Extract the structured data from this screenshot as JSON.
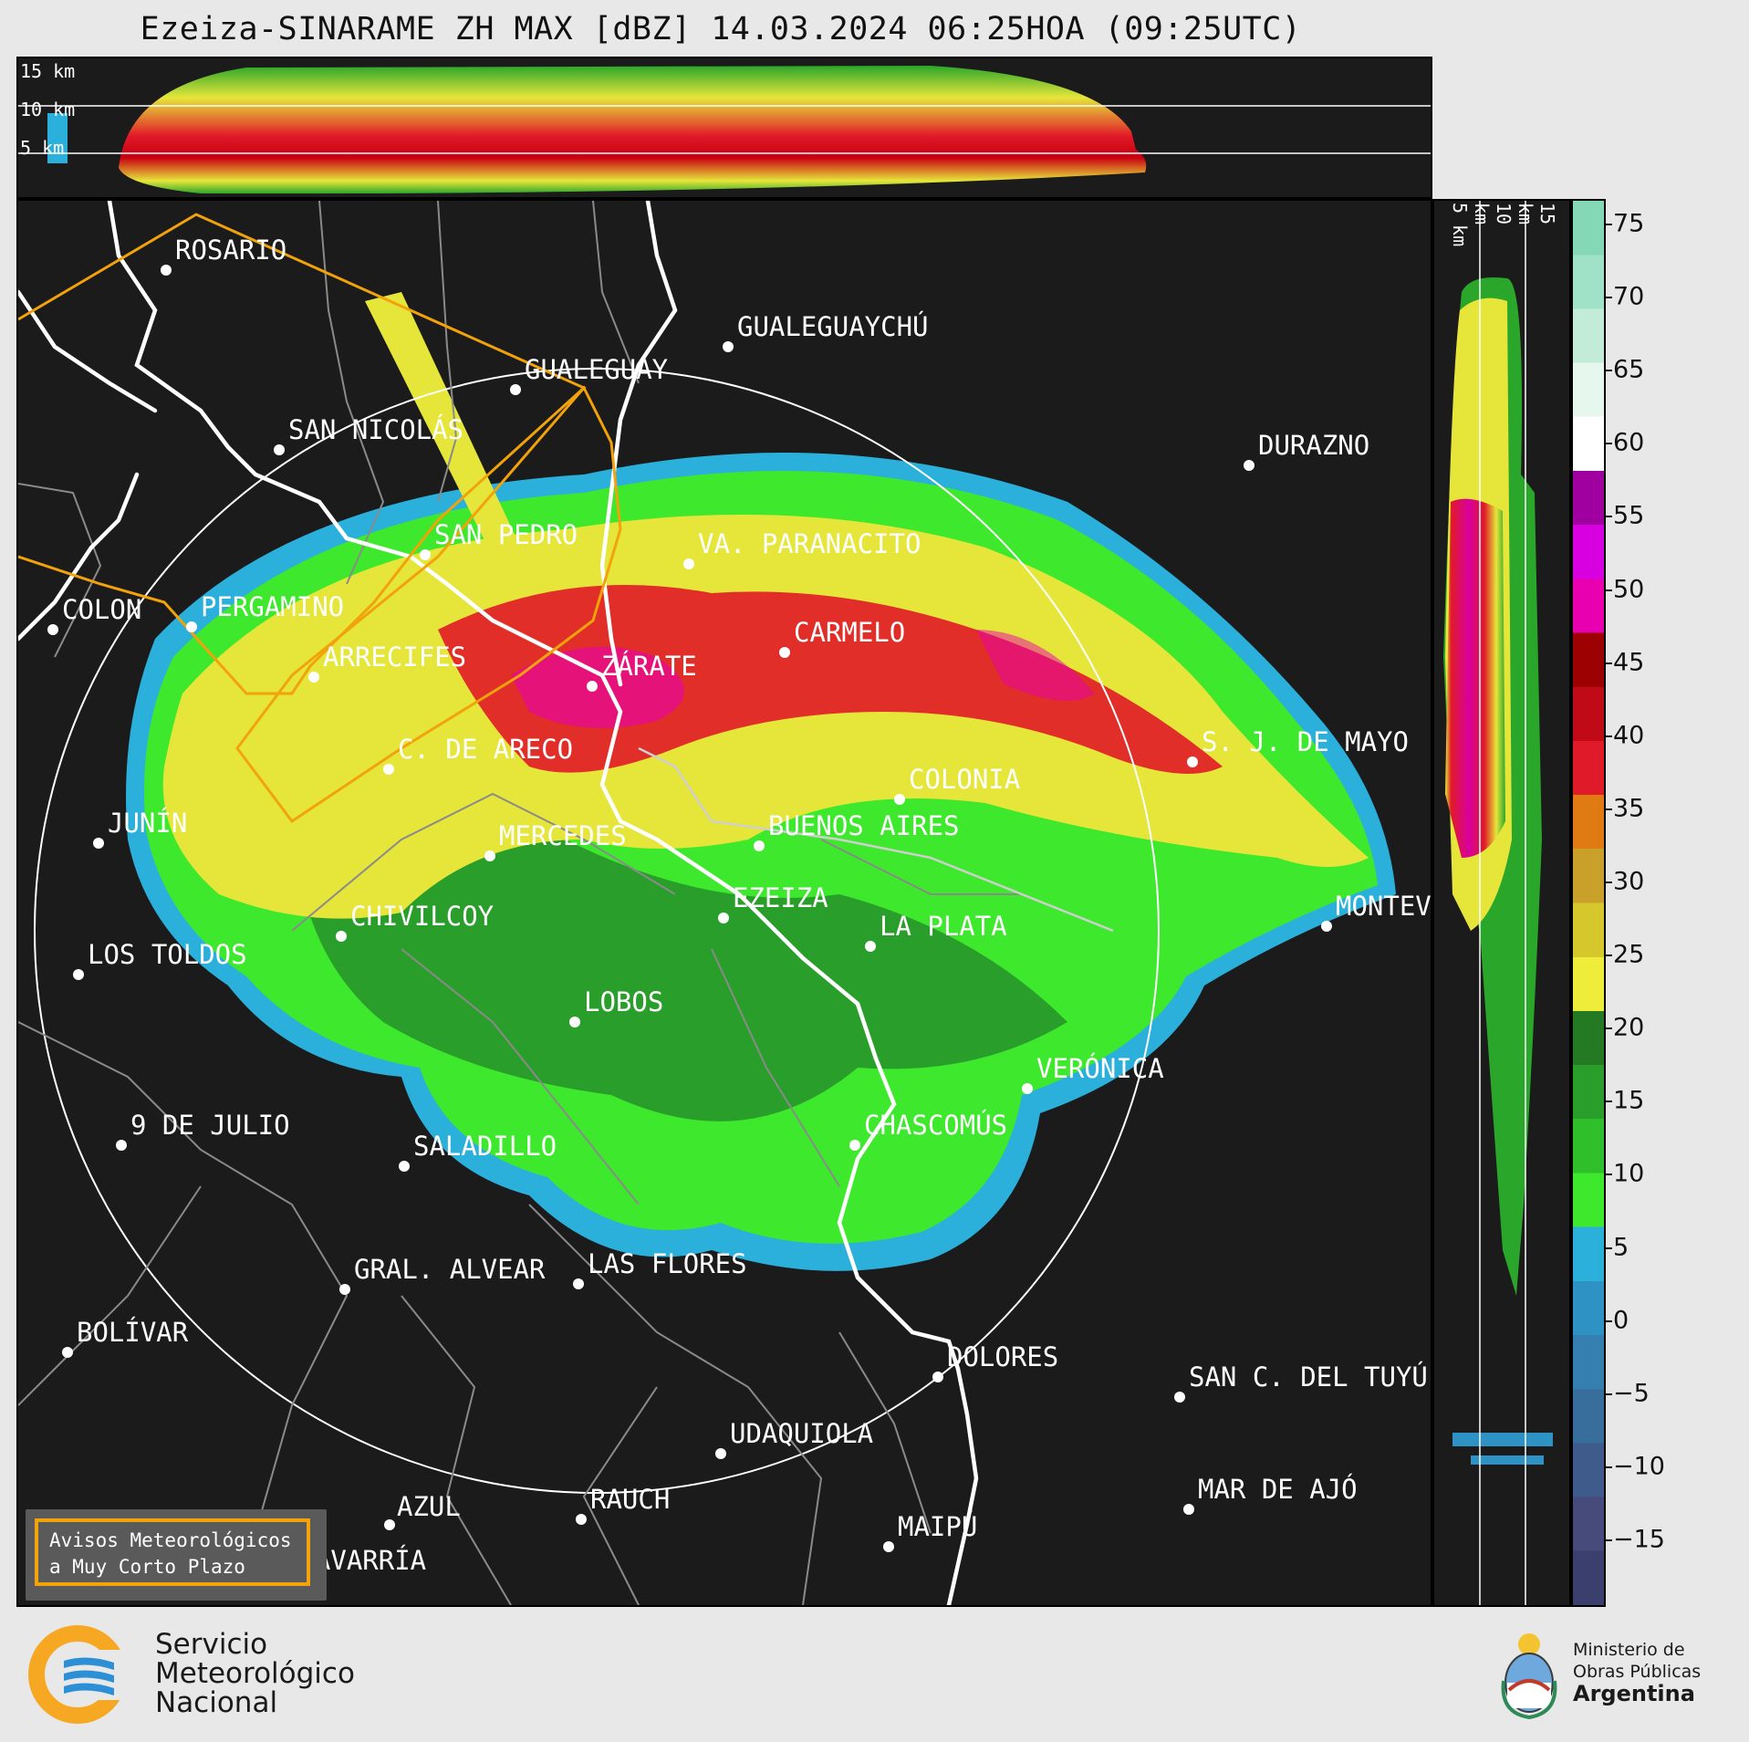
{
  "header": {
    "title": "Ezeiza-SINARAME ZH MAX [dBZ] 14.03.2024 06:25HOA (09:25UTC)"
  },
  "top_panel": {
    "height_labels": [
      "15 km",
      "10 km",
      "5 km"
    ]
  },
  "right_panel": {
    "height_labels": [
      "5 km",
      "10 km",
      "15 km"
    ]
  },
  "colorbar": {
    "unit": "dBZ",
    "ticks": [
      "75",
      "70",
      "65",
      "60",
      "55",
      "50",
      "45",
      "40",
      "35",
      "30",
      "25",
      "20",
      "15",
      "10",
      "5",
      "0",
      "−5",
      "−10",
      "−15"
    ],
    "colors": [
      "#3b3f6e",
      "#464b7b",
      "#3e5b8c",
      "#376e9c",
      "#347fb0",
      "#2e92c4",
      "#2bb0dc",
      "#3ee82c",
      "#2fbf2a",
      "#2a9e2a",
      "#247a22",
      "#eded3a",
      "#d6c82c",
      "#c8a02a",
      "#e07a12",
      "#e01a28",
      "#c00a18",
      "#9c0000",
      "#e800b0",
      "#d800e0",
      "#a000a0",
      "#ffffff",
      "#e6f7ee",
      "#c2ecd8",
      "#a0e2c8",
      "#84d8b6"
    ]
  },
  "map": {
    "cities": [
      "ROSARIO",
      "GUALEGUAYCHÚ",
      "GUALEGUAY",
      "SAN NICOLÁS",
      "DURAZNO",
      "SAN PEDRO",
      "VA. PARANACITO",
      "COLON",
      "PERGAMINO",
      "CARMELO",
      "ARRECIFES",
      "ZÁRATE",
      "S. J. DE MAYO",
      "C. DE ARECO",
      "COLONIA",
      "JUNÍN",
      "BUENOS AIRES",
      "MERCEDES",
      "EZEIZA",
      "MONTEVIDEO",
      "CHIVILCOY",
      "LA PLATA",
      "LOS TOLDOS",
      "LOBOS",
      "VERÓNICA",
      "9 DE JULIO",
      "CHASCOMÚS",
      "SALADILLO",
      "GRAL. ALVEAR",
      "LAS FLORES",
      "BOLÍVAR",
      "DOLORES",
      "SAN C. DEL TUYÚ",
      "UDAQUIOLA",
      "MAR DE AJÓ",
      "AZUL",
      "RAUCH",
      "OLAVARRÍA",
      "MAIPÚ"
    ]
  },
  "legend": {
    "line1": "Avisos Meteorológicos",
    "line2": "a Muy Corto Plazo"
  },
  "footer": {
    "smn_line1": "Servicio",
    "smn_line2": "Meteorológico",
    "smn_line3": "Nacional",
    "mop_line1": "Ministerio de",
    "mop_line2": "Obras Públicas",
    "mop_line3": "Argentina"
  }
}
